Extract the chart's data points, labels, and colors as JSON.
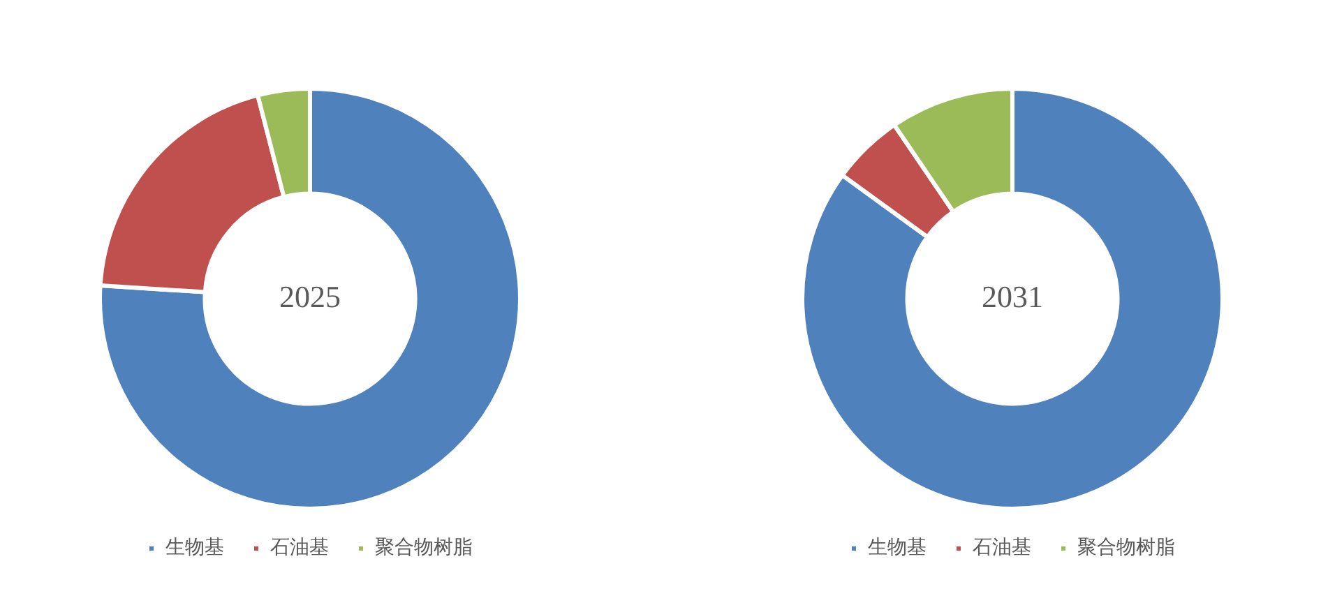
{
  "chart_data": [
    {
      "type": "donut",
      "title": "2025",
      "categories": [
        "生物基",
        "石油基",
        "聚合物树脂"
      ],
      "values": [
        76,
        20,
        4
      ],
      "colors": [
        "#4f81bd",
        "#c0504d",
        "#9bbb59"
      ],
      "legend": "bottom"
    },
    {
      "type": "donut",
      "title": "2031",
      "categories": [
        "生物基",
        "石油基",
        "聚合物树脂"
      ],
      "values": [
        85,
        5.5,
        9.5
      ],
      "colors": [
        "#4f81bd",
        "#c0504d",
        "#9bbb59"
      ],
      "legend": "bottom"
    }
  ]
}
